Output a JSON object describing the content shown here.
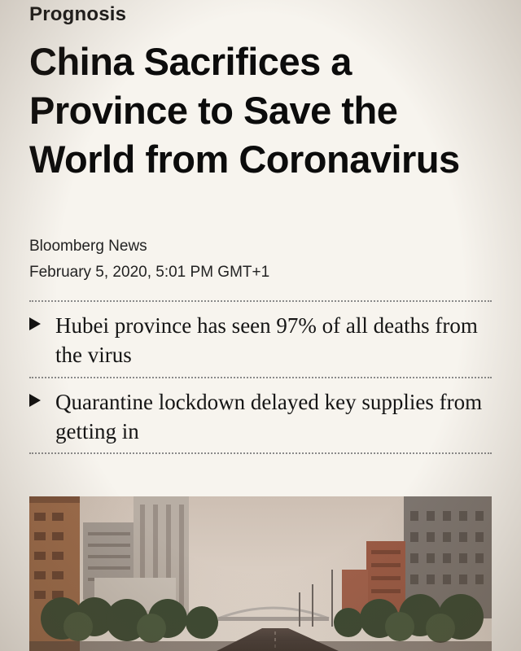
{
  "article": {
    "section": "Prognosis",
    "headline": "China Sacrifices a Province to Save the World from Coronavirus",
    "author": "Bloomberg News",
    "datetime": "February 5, 2020, 5:01 PM GMT+1",
    "bullets": [
      "Hubei province has seen 97% of all deaths from the virus",
      "Quarantine lockdown delayed key supplies from getting in"
    ]
  },
  "colors": {
    "background": "#f7f4ee",
    "text": "#111111",
    "rule": "#8a8a8a"
  },
  "photo": {
    "icon": "city-street-photo"
  }
}
